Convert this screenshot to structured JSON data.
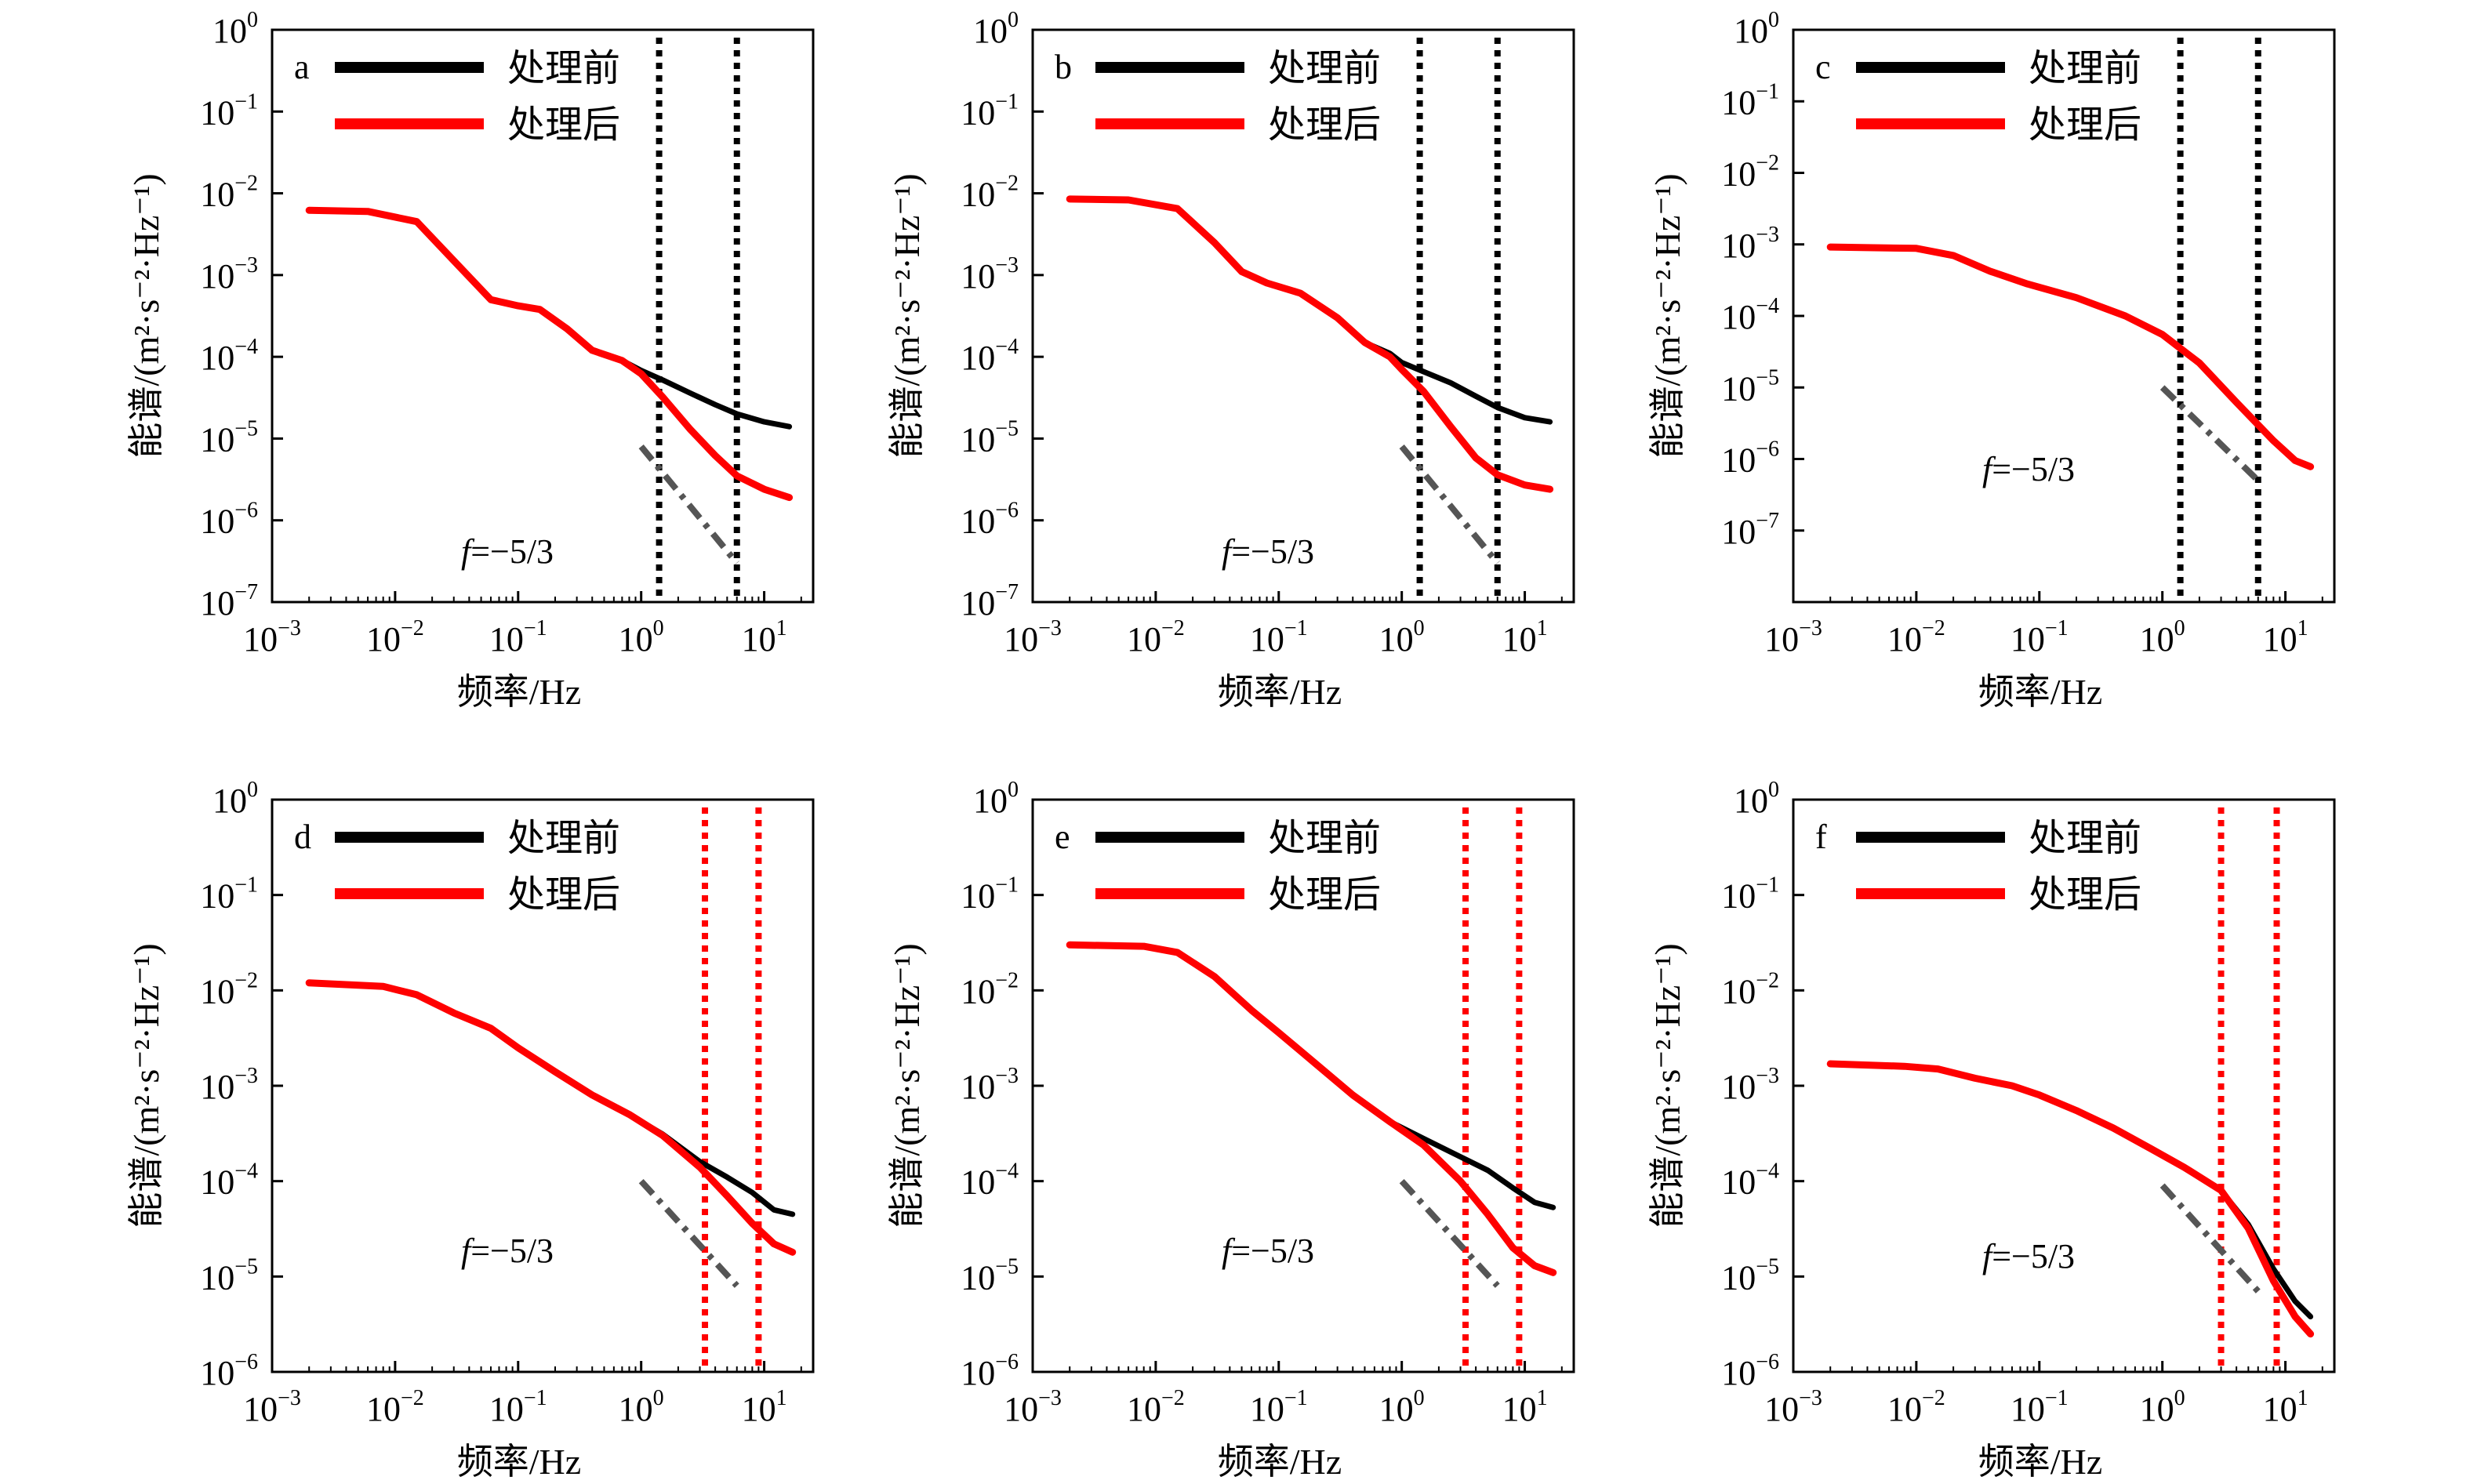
{
  "figure": {
    "layout": "2x3",
    "colors": {
      "before": "#000000",
      "after": "#ff0000",
      "ref_line": "#555555",
      "axes": "#000000"
    }
  },
  "chart_data": [
    {
      "type": "line",
      "panel_label": "a",
      "log_x": true,
      "log_y": true,
      "xlim": [
        0.001,
        25
      ],
      "ylim": [
        1e-07,
        1
      ],
      "xlabel": "频率/Hz",
      "ylabel": "能谱/(m²·s⁻²·Hz⁻¹)",
      "xticks": [
        "10^-3",
        "10^-2",
        "10^-1",
        "10^0",
        "10^1"
      ],
      "yticks": [
        "10^-7",
        "10^-6",
        "10^-5",
        "10^-4",
        "10^-3",
        "10^-2",
        "10^-1",
        "10^0"
      ],
      "legend": [
        "处理前",
        "处理后"
      ],
      "vlines": {
        "x": [
          1.4,
          6.0
        ],
        "color": "#000000"
      },
      "ref_line": {
        "label": "f=−5/3",
        "x": [
          1.0,
          6.0
        ],
        "y": [
          8e-06,
          3e-07
        ]
      },
      "series": [
        {
          "name": "处理前",
          "color": "#000000",
          "x": [
            0.002,
            0.006,
            0.015,
            0.03,
            0.06,
            0.1,
            0.15,
            0.25,
            0.4,
            0.7,
            1.0,
            1.5,
            2.5,
            4.0,
            6.0,
            10.0,
            16.0
          ],
          "y": [
            0.0062,
            0.006,
            0.0045,
            0.0015,
            0.0005,
            0.00042,
            0.00038,
            0.00022,
            0.00012,
            9e-05,
            6.8e-05,
            5.2e-05,
            3.6e-05,
            2.6e-05,
            2e-05,
            1.6e-05,
            1.4e-05
          ]
        },
        {
          "name": "处理后",
          "color": "#ff0000",
          "x": [
            0.002,
            0.006,
            0.015,
            0.03,
            0.06,
            0.1,
            0.15,
            0.25,
            0.4,
            0.7,
            1.0,
            1.5,
            2.5,
            4.0,
            6.0,
            10.0,
            16.0
          ],
          "y": [
            0.0062,
            0.006,
            0.0045,
            0.0015,
            0.0005,
            0.00042,
            0.00038,
            0.00022,
            0.00012,
            9e-05,
            6.2e-05,
            3.2e-05,
            1.3e-05,
            6.2e-06,
            3.5e-06,
            2.4e-06,
            1.9e-06
          ]
        }
      ]
    },
    {
      "type": "line",
      "panel_label": "b",
      "log_x": true,
      "log_y": true,
      "xlim": [
        0.001,
        25
      ],
      "ylim": [
        1e-07,
        1
      ],
      "xlabel": "频率/Hz",
      "ylabel": "能谱/(m²·s⁻²·Hz⁻¹)",
      "xticks": [
        "10^-3",
        "10^-2",
        "10^-1",
        "10^0",
        "10^1"
      ],
      "yticks": [
        "10^-7",
        "10^-6",
        "10^-5",
        "10^-4",
        "10^-3",
        "10^-2",
        "10^-1",
        "10^0"
      ],
      "legend": [
        "处理前",
        "处理后"
      ],
      "vlines": {
        "x": [
          1.4,
          6.0
        ],
        "color": "#000000"
      },
      "ref_line": {
        "label": "f=−5/3",
        "x": [
          1.0,
          6.0
        ],
        "y": [
          8e-06,
          3e-07
        ]
      },
      "series": [
        {
          "name": "处理前",
          "color": "#000000",
          "x": [
            0.002,
            0.006,
            0.015,
            0.03,
            0.05,
            0.08,
            0.15,
            0.3,
            0.5,
            0.8,
            1.0,
            1.5,
            2.5,
            4.0,
            6.0,
            10.0,
            16.0
          ],
          "y": [
            0.0085,
            0.0083,
            0.0065,
            0.0025,
            0.0011,
            0.0008,
            0.0006,
            0.0003,
            0.00015,
            0.00011,
            8.5e-05,
            6.6e-05,
            4.8e-05,
            3.3e-05,
            2.4e-05,
            1.8e-05,
            1.6e-05
          ]
        },
        {
          "name": "处理后",
          "color": "#ff0000",
          "x": [
            0.002,
            0.006,
            0.015,
            0.03,
            0.05,
            0.08,
            0.15,
            0.3,
            0.5,
            0.8,
            1.0,
            1.5,
            2.5,
            4.0,
            6.0,
            10.0,
            16.0
          ],
          "y": [
            0.0085,
            0.0083,
            0.0065,
            0.0025,
            0.0011,
            0.0008,
            0.0006,
            0.0003,
            0.00015,
            0.0001,
            7e-05,
            3.8e-05,
            1.4e-05,
            5.8e-06,
            3.6e-06,
            2.7e-06,
            2.4e-06
          ]
        }
      ]
    },
    {
      "type": "line",
      "panel_label": "c",
      "log_x": true,
      "log_y": true,
      "xlim": [
        0.001,
        25
      ],
      "ylim": [
        1e-08,
        1
      ],
      "xlabel": "频率/Hz",
      "ylabel": "能谱/(m²·s⁻²·Hz⁻¹)",
      "xticks": [
        "10^-3",
        "10^-2",
        "10^-1",
        "10^0",
        "10^1"
      ],
      "yticks": [
        "10^-7",
        "10^-6",
        "10^-5",
        "10^-4",
        "10^-3",
        "10^-2",
        "10^-1",
        "10^0"
      ],
      "legend": [
        "处理前",
        "处理后"
      ],
      "vlines": {
        "x": [
          1.4,
          6.0
        ],
        "color": "#000000"
      },
      "ref_line": {
        "label": "f=−5/3",
        "x": [
          1.0,
          6.0
        ],
        "y": [
          1e-05,
          5e-07
        ]
      },
      "series": [
        {
          "name": "处理前",
          "color": "#000000",
          "x": [
            0.002,
            0.01,
            0.02,
            0.04,
            0.08,
            0.2,
            0.5,
            1.0,
            2.0,
            4.0,
            8.0,
            12.0,
            16.0
          ],
          "y": [
            0.00092,
            0.00088,
            0.0007,
            0.00042,
            0.00028,
            0.00018,
            0.0001,
            5.5e-05,
            2.2e-05,
            6.2e-06,
            1.8e-06,
            9.5e-07,
            7.8e-07
          ]
        },
        {
          "name": "处理后",
          "color": "#ff0000",
          "x": [
            0.002,
            0.01,
            0.02,
            0.04,
            0.08,
            0.2,
            0.5,
            1.0,
            2.0,
            4.0,
            8.0,
            12.0,
            16.0
          ],
          "y": [
            0.00092,
            0.00088,
            0.0007,
            0.00042,
            0.00028,
            0.00018,
            0.0001,
            5.5e-05,
            2.2e-05,
            6.2e-06,
            1.8e-06,
            9.5e-07,
            7.8e-07
          ]
        }
      ]
    },
    {
      "type": "line",
      "panel_label": "d",
      "log_x": true,
      "log_y": true,
      "xlim": [
        0.001,
        25
      ],
      "ylim": [
        1e-06,
        1
      ],
      "xlabel": "频率/Hz",
      "ylabel": "能谱/(m²·s⁻²·Hz⁻¹)",
      "xticks": [
        "10^-3",
        "10^-2",
        "10^-1",
        "10^0",
        "10^1"
      ],
      "yticks": [
        "10^-6",
        "10^-5",
        "10^-4",
        "10^-3",
        "10^-2",
        "10^-1",
        "10^0"
      ],
      "legend": [
        "处理前",
        "处理后"
      ],
      "vlines": {
        "x": [
          3.3,
          9.0
        ],
        "color": "#ff0000"
      },
      "ref_line": {
        "label": "f=−5/3",
        "x": [
          1.0,
          6.0
        ],
        "y": [
          0.0001,
          8e-06
        ]
      },
      "series": [
        {
          "name": "处理前",
          "color": "#000000",
          "x": [
            0.002,
            0.008,
            0.015,
            0.03,
            0.06,
            0.1,
            0.2,
            0.4,
            0.8,
            1.5,
            3.0,
            5.0,
            8.0,
            12.0,
            17.0
          ],
          "y": [
            0.012,
            0.011,
            0.009,
            0.0058,
            0.004,
            0.0025,
            0.0014,
            0.0008,
            0.0005,
            0.00031,
            0.00016,
            0.00011,
            7.6e-05,
            5e-05,
            4.5e-05
          ]
        },
        {
          "name": "处理后",
          "color": "#ff0000",
          "x": [
            0.002,
            0.008,
            0.015,
            0.03,
            0.06,
            0.1,
            0.2,
            0.4,
            0.8,
            1.5,
            3.0,
            5.0,
            8.0,
            12.0,
            17.0
          ],
          "y": [
            0.012,
            0.011,
            0.009,
            0.0058,
            0.004,
            0.0025,
            0.0014,
            0.0008,
            0.0005,
            0.0003,
            0.00014,
            7e-05,
            3.6e-05,
            2.2e-05,
            1.8e-05
          ]
        }
      ]
    },
    {
      "type": "line",
      "panel_label": "e",
      "log_x": true,
      "log_y": true,
      "xlim": [
        0.001,
        25
      ],
      "ylim": [
        1e-06,
        1
      ],
      "xlabel": "频率/Hz",
      "ylabel": "能谱/(m²·s⁻²·Hz⁻¹)",
      "xticks": [
        "10^-3",
        "10^-2",
        "10^-1",
        "10^0",
        "10^1"
      ],
      "yticks": [
        "10^-6",
        "10^-5",
        "10^-4",
        "10^-3",
        "10^-2",
        "10^-1",
        "10^0"
      ],
      "legend": [
        "处理前",
        "处理后"
      ],
      "vlines": {
        "x": [
          3.3,
          9.0
        ],
        "color": "#ff0000"
      },
      "ref_line": {
        "label": "f=−5/3",
        "x": [
          1.0,
          6.0
        ],
        "y": [
          0.0001,
          8e-06
        ]
      },
      "series": [
        {
          "name": "处理前",
          "color": "#000000",
          "x": [
            0.002,
            0.008,
            0.015,
            0.03,
            0.06,
            0.1,
            0.2,
            0.4,
            0.8,
            1.5,
            3.0,
            5.0,
            8.0,
            12.0,
            17.0
          ],
          "y": [
            0.03,
            0.029,
            0.025,
            0.014,
            0.0062,
            0.0036,
            0.0017,
            0.0008,
            0.00042,
            0.00028,
            0.00018,
            0.00013,
            8.5e-05,
            6e-05,
            5.3e-05
          ]
        },
        {
          "name": "处理后",
          "color": "#ff0000",
          "x": [
            0.002,
            0.008,
            0.015,
            0.03,
            0.06,
            0.1,
            0.2,
            0.4,
            0.8,
            1.5,
            3.0,
            5.0,
            8.0,
            12.0,
            17.0
          ],
          "y": [
            0.03,
            0.029,
            0.025,
            0.014,
            0.0062,
            0.0036,
            0.0017,
            0.0008,
            0.00042,
            0.00024,
            0.0001,
            4.5e-05,
            2e-05,
            1.3e-05,
            1.1e-05
          ]
        }
      ]
    },
    {
      "type": "line",
      "panel_label": "f",
      "log_x": true,
      "log_y": true,
      "xlim": [
        0.001,
        25
      ],
      "ylim": [
        1e-06,
        1
      ],
      "xlabel": "频率/Hz",
      "ylabel": "能谱/(m²·s⁻²·Hz⁻¹)",
      "xticks": [
        "10^-3",
        "10^-2",
        "10^-1",
        "10^0",
        "10^1"
      ],
      "yticks": [
        "10^-6",
        "10^-5",
        "10^-4",
        "10^-3",
        "10^-2",
        "10^-1",
        "10^0"
      ],
      "legend": [
        "处理前",
        "处理后"
      ],
      "vlines": {
        "x": [
          3.0,
          8.5
        ],
        "color": "#ff0000"
      },
      "ref_line": {
        "label": "f=−5/3",
        "x": [
          1.0,
          6.0
        ],
        "y": [
          9e-05,
          7e-06
        ]
      },
      "series": [
        {
          "name": "处理前",
          "color": "#000000",
          "x": [
            0.002,
            0.008,
            0.015,
            0.03,
            0.06,
            0.1,
            0.2,
            0.4,
            0.8,
            1.5,
            3.0,
            5.0,
            8.0,
            12.0,
            16.0
          ],
          "y": [
            0.0017,
            0.0016,
            0.0015,
            0.0012,
            0.001,
            0.0008,
            0.00055,
            0.00036,
            0.00022,
            0.00014,
            8e-05,
            3.5e-05,
            1.2e-05,
            5.5e-06,
            3.8e-06
          ]
        },
        {
          "name": "处理后",
          "color": "#ff0000",
          "x": [
            0.002,
            0.008,
            0.015,
            0.03,
            0.06,
            0.1,
            0.2,
            0.4,
            0.8,
            1.5,
            3.0,
            5.0,
            8.0,
            12.0,
            16.0
          ],
          "y": [
            0.0017,
            0.0016,
            0.0015,
            0.0012,
            0.001,
            0.0008,
            0.00055,
            0.00036,
            0.00022,
            0.00014,
            8e-05,
            3.2e-05,
            9e-06,
            3.8e-06,
            2.5e-06
          ]
        }
      ]
    }
  ]
}
